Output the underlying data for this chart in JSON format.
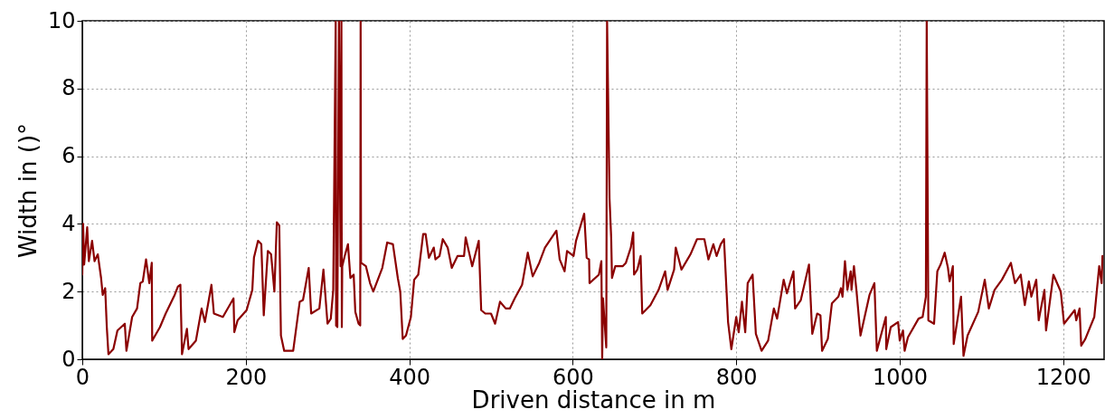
{
  "chart_data": {
    "type": "line",
    "xlabel": "Driven distance in m",
    "ylabel": "Width in ()°",
    "xlim": [
      0,
      1250
    ],
    "xticks": [
      0,
      200,
      400,
      600,
      800,
      1000,
      1200
    ],
    "ylim": [
      0,
      10
    ],
    "yticks": [
      0,
      2,
      4,
      6,
      8,
      10
    ],
    "grid": true,
    "line_style": "solid",
    "series": [
      {
        "color": "#8b0000",
        "x": [
          0,
          1,
          2.3,
          6,
          8,
          12,
          15,
          19,
          23,
          25,
          28,
          30,
          32,
          38,
          43,
          52,
          54,
          61,
          67,
          71,
          74,
          78,
          82,
          85,
          85.5,
          95,
          102,
          113,
          117,
          120,
          122,
          128,
          130,
          139,
          146,
          150,
          158,
          161,
          172,
          185,
          186,
          190,
          201,
          208,
          210,
          215,
          219,
          222,
          227,
          231,
          235,
          238,
          241,
          243,
          247,
          258,
          266,
          270,
          277,
          280,
          290,
          295,
          300,
          304,
          307,
          310,
          310.5,
          311,
          312,
          314,
          316,
          317,
          317.5,
          318,
          321,
          325,
          328,
          332,
          334,
          338,
          340,
          340.5,
          341,
          347,
          352,
          356,
          367,
          373,
          380,
          386,
          389,
          392,
          396,
          402,
          406,
          411,
          417,
          420,
          424,
          430,
          432,
          437,
          441,
          447,
          452,
          459,
          467,
          469,
          477,
          485,
          488,
          493,
          500,
          505,
          511,
          518,
          523,
          529,
          538,
          545,
          551,
          559,
          566,
          580,
          584,
          590,
          593,
          601,
          604,
          614,
          617,
          620,
          620.5,
          632,
          635,
          636,
          637,
          641,
          642,
          645,
          647,
          648,
          652,
          661,
          665,
          671,
          674,
          675,
          679,
          683,
          685,
          695,
          705,
          713,
          716,
          724,
          726,
          733,
          744,
          752,
          761,
          766,
          772,
          776,
          781,
          785,
          790,
          794,
          800,
          803,
          807,
          811,
          814,
          820,
          824,
          831,
          839,
          846,
          850,
          858,
          862,
          870,
          872,
          879,
          889,
          893,
          899,
          903,
          905,
          912,
          917,
          925,
          928,
          930,
          933,
          936,
          940,
          941,
          944,
          947,
          952,
          963,
          969,
          972,
          983,
          983.5,
          989,
          998,
          1000,
          1004,
          1006,
          1010,
          1023,
          1028,
          1032,
          1033,
          1035,
          1042,
          1046,
          1050,
          1055,
          1059,
          1061,
          1065,
          1066,
          1075,
          1078,
          1083,
          1096,
          1104,
          1109,
          1116,
          1125,
          1136,
          1141,
          1148,
          1153,
          1158,
          1161,
          1167,
          1170,
          1177,
          1179,
          1188,
          1197,
          1201,
          1214,
          1216,
          1220,
          1222,
          1227,
          1238,
          1244,
          1247,
          1248
        ],
        "values": [
          2.5,
          4.0,
          2.8,
          3.9,
          2.9,
          3.5,
          2.9,
          3.1,
          2.4,
          1.9,
          2.1,
          0.95,
          0.15,
          0.3,
          0.85,
          1.05,
          0.25,
          1.25,
          1.5,
          2.25,
          2.3,
          2.95,
          2.25,
          2.85,
          0.55,
          0.95,
          1.35,
          1.9,
          2.15,
          2.2,
          0.15,
          0.9,
          0.3,
          0.55,
          1.5,
          1.1,
          2.2,
          1.35,
          1.25,
          1.8,
          0.8,
          1.15,
          1.45,
          2.05,
          3.0,
          3.5,
          3.4,
          1.3,
          3.2,
          3.1,
          2.0,
          4.05,
          3.95,
          0.7,
          0.25,
          0.25,
          1.7,
          1.75,
          2.7,
          1.35,
          1.5,
          2.65,
          1.05,
          1.2,
          2.05,
          10,
          0.99,
          2.05,
          0.95,
          10,
          2.75,
          10,
          0.95,
          2.75,
          3.05,
          3.4,
          2.4,
          2.5,
          1.4,
          1.05,
          1.0,
          10,
          2.85,
          2.75,
          2.25,
          2.0,
          2.7,
          3.45,
          3.4,
          2.4,
          2.0,
          0.6,
          0.7,
          1.25,
          2.35,
          2.5,
          3.7,
          3.7,
          3.0,
          3.3,
          2.95,
          3.05,
          3.55,
          3.3,
          2.7,
          3.05,
          3.05,
          3.6,
          2.75,
          3.5,
          1.45,
          1.35,
          1.35,
          1.05,
          1.7,
          1.5,
          1.5,
          1.8,
          2.2,
          3.15,
          2.45,
          2.85,
          3.3,
          3.8,
          2.95,
          2.6,
          3.2,
          3.05,
          3.5,
          4.3,
          3.0,
          2.95,
          2.25,
          2.5,
          2.9,
          0,
          1.8,
          0.35,
          10,
          4.75,
          3.6,
          2.4,
          2.75,
          2.75,
          2.85,
          3.3,
          3.75,
          2.5,
          2.65,
          3.05,
          1.35,
          1.6,
          2.05,
          2.6,
          2.05,
          2.65,
          3.3,
          2.65,
          3.1,
          3.55,
          3.55,
          2.95,
          3.4,
          3.05,
          3.4,
          3.55,
          1.1,
          0.3,
          1.25,
          0.8,
          1.7,
          0.8,
          2.25,
          2.5,
          0.75,
          0.25,
          0.55,
          1.5,
          1.2,
          2.35,
          1.95,
          2.6,
          1.5,
          1.75,
          2.8,
          0.75,
          1.35,
          1.3,
          0.25,
          0.6,
          1.65,
          1.85,
          2.1,
          1.85,
          2.9,
          2.05,
          2.6,
          2.05,
          2.75,
          2.05,
          0.7,
          1.9,
          2.25,
          0.25,
          1.25,
          0.3,
          0.95,
          1.1,
          0.55,
          0.85,
          0.25,
          0.65,
          1.2,
          1.25,
          1.85,
          10,
          1.15,
          1.05,
          2.6,
          2.8,
          3.15,
          2.7,
          2.3,
          2.75,
          0.45,
          1.85,
          0.1,
          0.7,
          1.4,
          2.35,
          1.5,
          2.05,
          2.35,
          2.85,
          2.25,
          2.5,
          1.6,
          2.3,
          1.85,
          2.35,
          1.15,
          2.05,
          0.85,
          2.5,
          2.0,
          1.05,
          1.45,
          1.15,
          1.5,
          0.4,
          0.6,
          1.25,
          2.75,
          2.25,
          3.05
        ]
      }
    ]
  }
}
